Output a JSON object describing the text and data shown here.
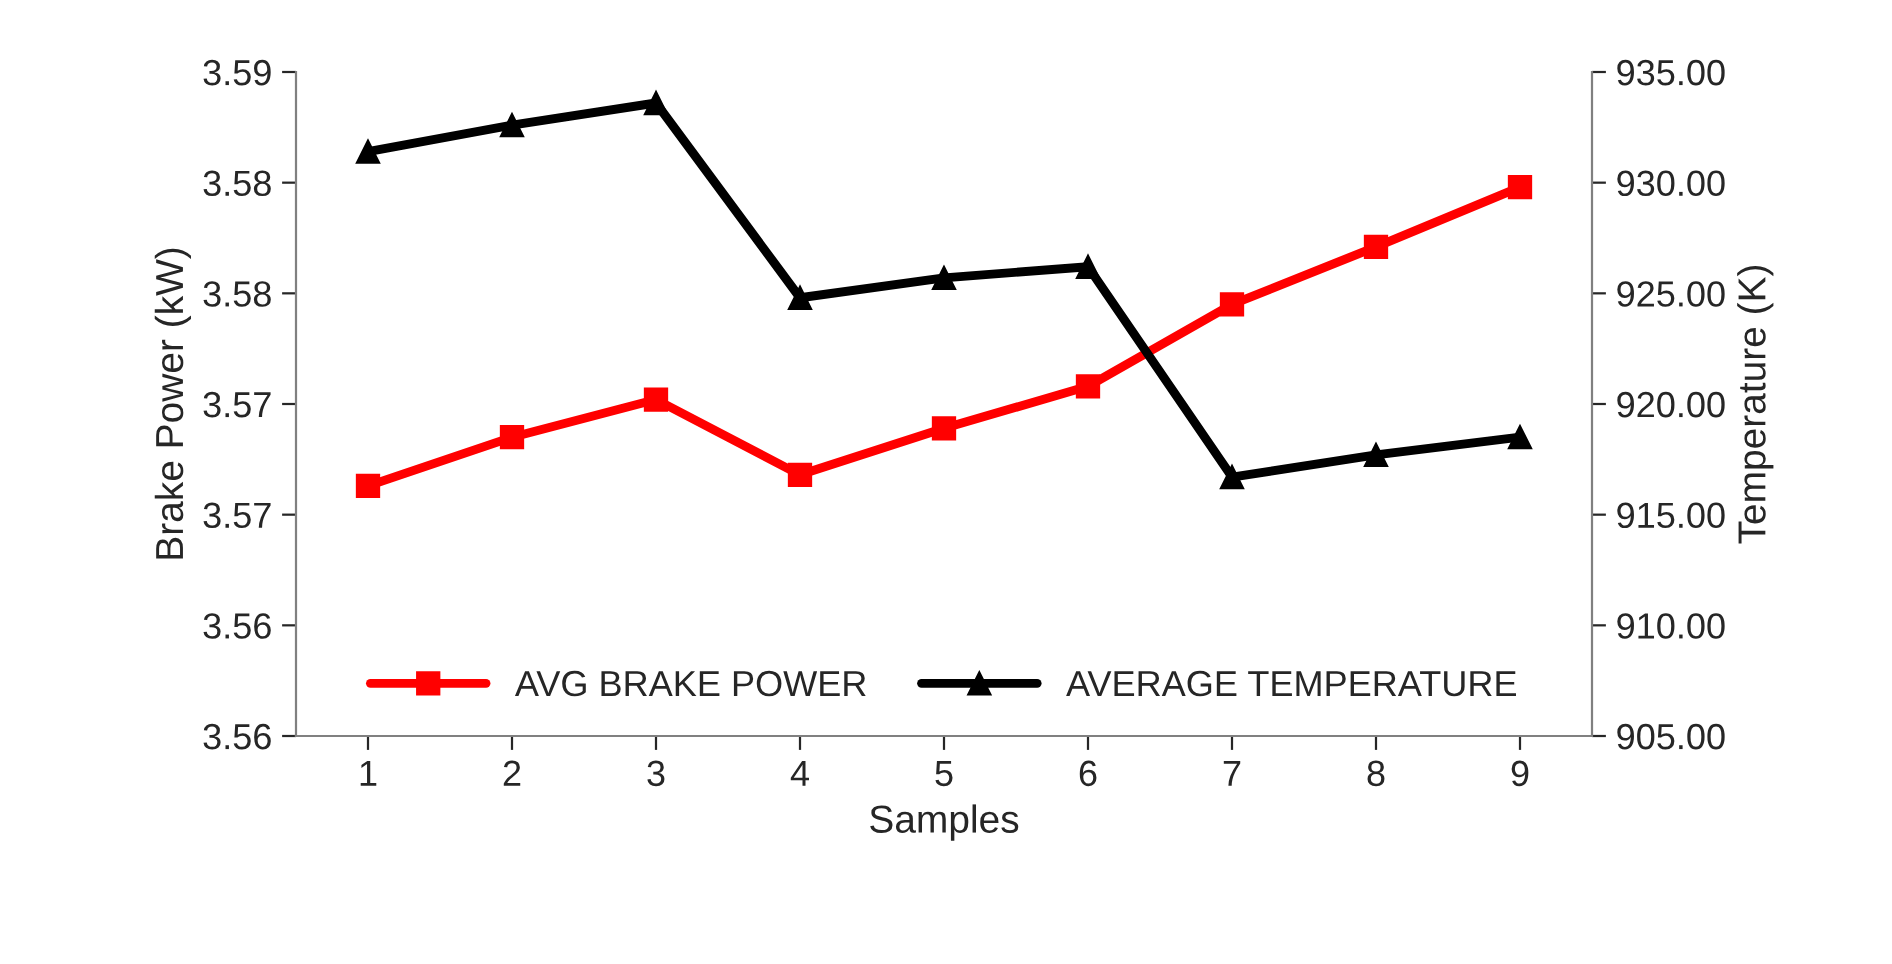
{
  "chart_data": {
    "type": "line",
    "xlabel": "Samples",
    "ylabel": "Brake Power (kW)",
    "y2label": "Temperature (K)",
    "categories": [
      "1",
      "2",
      "3",
      "4",
      "5",
      "6",
      "7",
      "8",
      "9"
    ],
    "series": [
      {
        "name": "AVG BRAKE POWER",
        "color": "#ff0000",
        "marker": "square",
        "values": [
          3.5663,
          3.5685,
          3.5702,
          3.5668,
          3.5689,
          3.5708,
          3.5745,
          3.5771,
          3.5798
        ]
      },
      {
        "name": "AVERAGE TEMPERATURE",
        "color": "#000000",
        "marker": "triangle",
        "axis": "y2",
        "values": [
          931.4,
          932.6,
          933.6,
          924.8,
          925.7,
          926.2,
          916.7,
          917.7,
          918.5
        ]
      }
    ],
    "ylim": [
      3.555,
      3.585
    ],
    "yticks": [
      {
        "value": 3.555,
        "label": "3.56"
      },
      {
        "value": 3.56,
        "label": "3.56"
      },
      {
        "value": 3.565,
        "label": "3.57"
      },
      {
        "value": 3.57,
        "label": "3.57"
      },
      {
        "value": 3.575,
        "label": "3.58"
      },
      {
        "value": 3.58,
        "label": "3.58"
      },
      {
        "value": 3.585,
        "label": "3.59"
      }
    ],
    "y2lim": [
      905,
      935
    ],
    "y2ticks": [
      {
        "value": 905,
        "label": "905.00"
      },
      {
        "value": 910,
        "label": "910.00"
      },
      {
        "value": 915,
        "label": "915.00"
      },
      {
        "value": 920,
        "label": "920.00"
      },
      {
        "value": 925,
        "label": "925.00"
      },
      {
        "value": 930,
        "label": "930.00"
      },
      {
        "value": 935,
        "label": "935.00"
      }
    ],
    "grid": false,
    "legend": "bottom",
    "line_style": "solid"
  }
}
